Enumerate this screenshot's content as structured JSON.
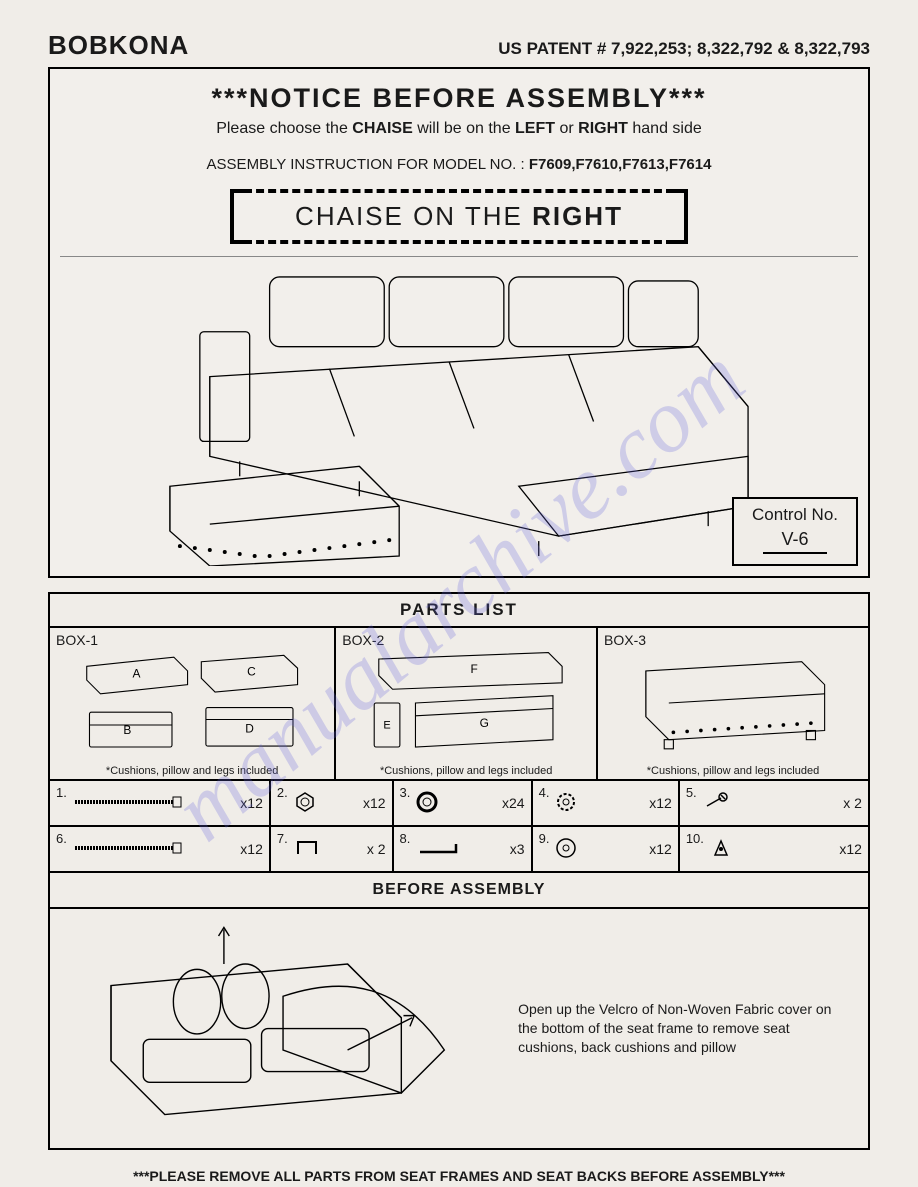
{
  "header": {
    "brand": "BOBKONA",
    "patent": "US PATENT # 7,922,253; 8,322,792 & 8,322,793"
  },
  "notice": {
    "title": "***NOTICE BEFORE ASSEMBLY***",
    "sub_pre": "Please choose the ",
    "sub_b1": "CHAISE",
    "sub_mid": " will be on the ",
    "sub_b2": "LEFT",
    "sub_or": " or ",
    "sub_b3": "RIGHT",
    "sub_post": " hand side",
    "model_label": "ASSEMBLY INSTRUCTION FOR MODEL NO. : ",
    "model_nums": "F7609,F7610,F7613,F7614",
    "chaise_pre": "CHAISE ON THE ",
    "chaise_side": "RIGHT"
  },
  "control": {
    "label": "Control No.",
    "value": "V-6"
  },
  "parts": {
    "title": "PARTS LIST",
    "boxes": [
      {
        "label": "BOX-1",
        "note": "*Cushions, pillow and legs included",
        "letters": [
          "A",
          "B",
          "C",
          "D"
        ]
      },
      {
        "label": "BOX-2",
        "note": "*Cushions, pillow and legs included",
        "letters": [
          "E",
          "F",
          "G"
        ]
      },
      {
        "label": "BOX-3",
        "note": "*Cushions, pillow and legs included",
        "letters": []
      }
    ],
    "hardware": [
      {
        "num": "1.",
        "qty": "x12",
        "icon": "bolt-long"
      },
      {
        "num": "2.",
        "qty": "x12",
        "icon": "nut"
      },
      {
        "num": "3.",
        "qty": "x24",
        "icon": "washer-thick"
      },
      {
        "num": "4.",
        "qty": "x12",
        "icon": "lock-washer"
      },
      {
        "num": "5.",
        "qty": "x 2",
        "icon": "wrench"
      },
      {
        "num": "6.",
        "qty": "x12",
        "icon": "bolt-long"
      },
      {
        "num": "7.",
        "qty": "x 2",
        "icon": "staple"
      },
      {
        "num": "8.",
        "qty": "x3",
        "icon": "hex-key"
      },
      {
        "num": "9.",
        "qty": "x12",
        "icon": "washer-flat"
      },
      {
        "num": "10.",
        "qty": "x12",
        "icon": "foot"
      }
    ]
  },
  "before": {
    "title": "BEFORE ASSEMBLY",
    "text": "Open up the Velcro of Non-Woven Fabric cover on the bottom of the seat frame to remove seat cushions, back cushions and pillow"
  },
  "bottom": "***PLEASE REMOVE ALL PARTS FROM SEAT FRAMES AND SEAT BACKS BEFORE ASSEMBLY***",
  "watermark": "manualarchive.com",
  "layout": {
    "box_widths": [
      "35%",
      "32%",
      "33%"
    ],
    "hw_row1_widths": [
      "27%",
      "15%",
      "17%",
      "18%",
      "23%"
    ],
    "hw_row2_widths": [
      "27%",
      "15%",
      "17%",
      "18%",
      "23%"
    ]
  },
  "colors": {
    "bg": "#f0ede8",
    "line": "#000000",
    "watermark": "rgba(100,100,220,0.25)"
  }
}
